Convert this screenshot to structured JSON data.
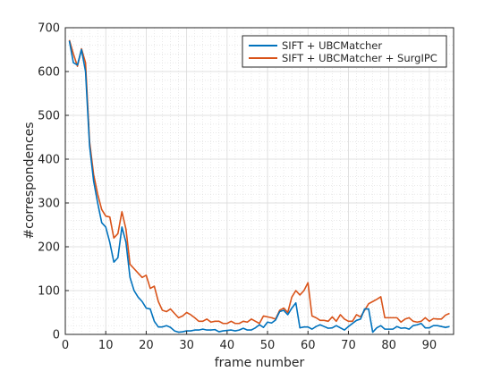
{
  "chart_data": {
    "type": "line",
    "title": "",
    "xlabel": "frame number",
    "ylabel": "#correspondences",
    "xlim": [
      0,
      96
    ],
    "ylim": [
      0,
      700
    ],
    "xticks": [
      0,
      10,
      20,
      30,
      40,
      50,
      60,
      70,
      80,
      90
    ],
    "yticks": [
      0,
      100,
      200,
      300,
      400,
      500,
      600,
      700
    ],
    "grid": true,
    "minor_grid": true,
    "legend_position": "top-right",
    "x": [
      1,
      2,
      3,
      4,
      5,
      6,
      7,
      8,
      9,
      10,
      11,
      12,
      13,
      14,
      15,
      16,
      17,
      18,
      19,
      20,
      21,
      22,
      23,
      24,
      25,
      26,
      27,
      28,
      29,
      30,
      31,
      32,
      33,
      34,
      35,
      36,
      37,
      38,
      39,
      40,
      41,
      42,
      43,
      44,
      45,
      46,
      47,
      48,
      49,
      50,
      51,
      52,
      53,
      54,
      55,
      56,
      57,
      58,
      59,
      60,
      61,
      62,
      63,
      64,
      65,
      66,
      67,
      68,
      69,
      70,
      71,
      72,
      73,
      74,
      75,
      76,
      77,
      78,
      79,
      80,
      81,
      82,
      83,
      84,
      85,
      86,
      87,
      88,
      89,
      90,
      91,
      92,
      93,
      94,
      95
    ],
    "series": [
      {
        "name": "SIFT + UBCMatcher",
        "color": "#0072BD",
        "values": [
          670,
          620,
          615,
          650,
          600,
          430,
          350,
          300,
          255,
          245,
          210,
          165,
          175,
          245,
          210,
          130,
          100,
          85,
          75,
          60,
          58,
          30,
          17,
          17,
          20,
          16,
          8,
          5,
          6,
          8,
          8,
          10,
          10,
          12,
          10,
          10,
          11,
          6,
          8,
          9,
          10,
          8,
          10,
          14,
          10,
          10,
          15,
          22,
          16,
          28,
          26,
          33,
          52,
          55,
          45,
          60,
          72,
          15,
          17,
          17,
          12,
          18,
          22,
          18,
          14,
          15,
          20,
          15,
          10,
          18,
          25,
          32,
          35,
          58,
          58,
          5,
          15,
          20,
          12,
          12,
          12,
          18,
          14,
          15,
          12,
          20,
          22,
          25,
          15,
          15,
          20,
          20,
          18,
          16,
          18
        ]
      },
      {
        "name": "SIFT + UBCMatcher + SurgIPC",
        "color": "#D95319",
        "values": [
          672,
          640,
          612,
          652,
          620,
          440,
          365,
          320,
          285,
          270,
          268,
          220,
          230,
          280,
          240,
          160,
          150,
          140,
          130,
          135,
          105,
          110,
          75,
          55,
          52,
          58,
          48,
          38,
          42,
          50,
          45,
          38,
          30,
          30,
          35,
          28,
          30,
          30,
          25,
          25,
          30,
          25,
          25,
          30,
          28,
          35,
          30,
          25,
          42,
          40,
          38,
          35,
          55,
          60,
          50,
          85,
          100,
          90,
          100,
          118,
          42,
          38,
          32,
          32,
          30,
          40,
          30,
          45,
          35,
          30,
          30,
          45,
          40,
          55,
          70,
          75,
          80,
          86,
          38,
          38,
          38,
          38,
          28,
          35,
          38,
          30,
          28,
          30,
          38,
          30,
          36,
          35,
          35,
          44,
          48
        ]
      }
    ]
  }
}
